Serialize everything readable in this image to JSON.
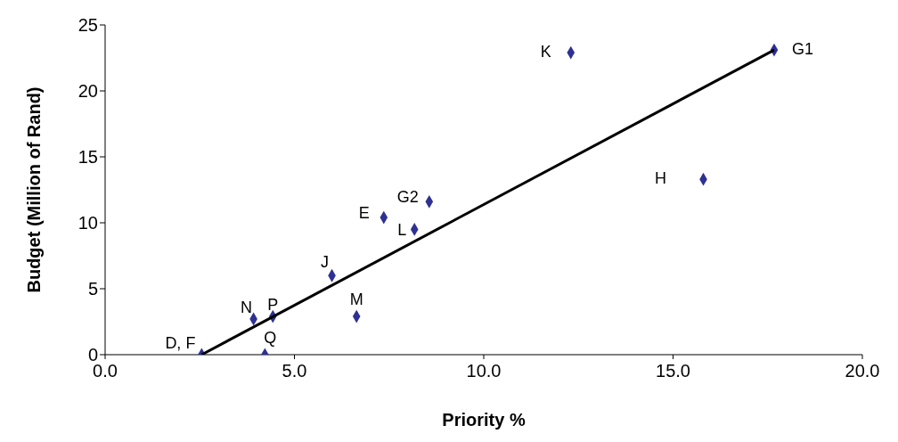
{
  "chart_data": {
    "type": "scatter",
    "xlabel": "Priority %",
    "ylabel": "Budget (Million of Rand)",
    "xlim": [
      0,
      20
    ],
    "xticks": [
      {
        "value": 0,
        "label": "0.0"
      },
      {
        "value": 5,
        "label": "5.0"
      },
      {
        "value": 10,
        "label": "10.0"
      },
      {
        "value": 15,
        "label": "15.0"
      },
      {
        "value": 20,
        "label": "20.0"
      }
    ],
    "ylim": [
      0,
      25
    ],
    "yticks": [
      0,
      5,
      10,
      15,
      20,
      25
    ],
    "grid": false,
    "legend": false,
    "marker": "diamond",
    "series": [
      {
        "color": "#2e3192",
        "x": [
          2.55,
          4.22,
          3.92,
          4.43,
          6.64,
          5.99,
          7.36,
          8.17,
          8.56,
          12.3,
          15.8,
          17.67
        ],
        "values": [
          0,
          0,
          2.7,
          2.9,
          2.9,
          6.0,
          10.4,
          9.5,
          11.6,
          22.9,
          13.3,
          23.1
        ]
      },
      {
        "type": "line",
        "marker": "none",
        "color": "#000000",
        "x": [
          2.55,
          17.67
        ],
        "values": [
          0,
          23.1
        ]
      }
    ],
    "annotations": [
      {
        "text": "D, F",
        "x": 2.55,
        "y": 0
      },
      {
        "text": "Q",
        "x": 4.22,
        "y": 0
      },
      {
        "text": "N",
        "x": 3.92,
        "y": 2.7
      },
      {
        "text": "P",
        "x": 4.43,
        "y": 2.9
      },
      {
        "text": "M",
        "x": 6.64,
        "y": 2.9
      },
      {
        "text": "J",
        "x": 5.99,
        "y": 6.0
      },
      {
        "text": "E",
        "x": 7.36,
        "y": 10.4
      },
      {
        "text": "L",
        "x": 8.17,
        "y": 9.5
      },
      {
        "text": "G2",
        "x": 8.56,
        "y": 11.6
      },
      {
        "text": "K",
        "x": 12.3,
        "y": 22.9
      },
      {
        "text": "H",
        "x": 15.8,
        "y": 13.3
      },
      {
        "text": "G1",
        "x": 17.67,
        "y": 23.1
      }
    ]
  }
}
